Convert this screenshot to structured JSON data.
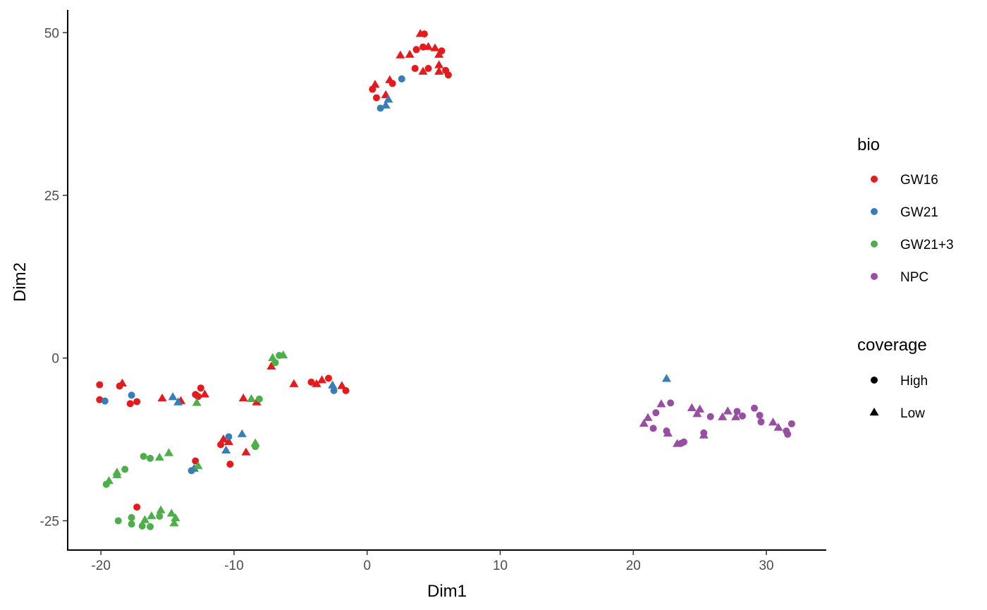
{
  "chart_data": {
    "type": "scatter",
    "xlabel": "Dim1",
    "ylabel": "Dim2",
    "xlim": [
      -22.5,
      34.5
    ],
    "ylim": [
      -29.5,
      53.5
    ],
    "x_ticks": [
      -20,
      -10,
      0,
      10,
      20,
      30
    ],
    "y_ticks": [
      -25,
      0,
      25,
      50
    ],
    "x_tick_labels": [
      "-20",
      "-10",
      "0",
      "10",
      "20",
      "30"
    ],
    "y_tick_labels": [
      "-25",
      "0",
      "25",
      "50"
    ],
    "grid": false,
    "legend_position": "right",
    "legends": {
      "color": {
        "title": "bio",
        "entries": [
          {
            "label": "GW16",
            "color": "#E41A1C"
          },
          {
            "label": "GW21",
            "color": "#377EB8"
          },
          {
            "label": "GW21+3",
            "color": "#4DAF4A"
          },
          {
            "label": "NPC",
            "color": "#984EA3"
          }
        ]
      },
      "shape": {
        "title": "coverage",
        "entries": [
          {
            "label": "High",
            "shape": "circle"
          },
          {
            "label": "Low",
            "shape": "triangle"
          }
        ]
      }
    },
    "point_fields": [
      "x",
      "y",
      "bio",
      "coverage"
    ],
    "points": [
      [
        0.4,
        41.3,
        "GW16",
        "High"
      ],
      [
        0.7,
        40.0,
        "GW16",
        "High"
      ],
      [
        0.6,
        42.0,
        "GW16",
        "Low"
      ],
      [
        1.4,
        40.4,
        "GW16",
        "Low"
      ],
      [
        1.7,
        42.7,
        "GW16",
        "Low"
      ],
      [
        1.9,
        42.2,
        "GW16",
        "High"
      ],
      [
        2.5,
        46.5,
        "GW16",
        "Low"
      ],
      [
        3.2,
        46.6,
        "GW16",
        "Low"
      ],
      [
        3.6,
        44.5,
        "GW16",
        "High"
      ],
      [
        3.7,
        47.4,
        "GW16",
        "High"
      ],
      [
        4.0,
        49.8,
        "GW16",
        "Low"
      ],
      [
        4.3,
        49.8,
        "GW16",
        "High"
      ],
      [
        4.2,
        47.8,
        "GW16",
        "High"
      ],
      [
        4.2,
        44.0,
        "GW16",
        "Low"
      ],
      [
        4.6,
        47.8,
        "GW16",
        "Low"
      ],
      [
        4.6,
        44.5,
        "GW16",
        "High"
      ],
      [
        5.1,
        47.6,
        "GW16",
        "Low"
      ],
      [
        5.4,
        45.0,
        "GW16",
        "Low"
      ],
      [
        5.4,
        46.6,
        "GW16",
        "Low"
      ],
      [
        5.6,
        47.2,
        "GW16",
        "High"
      ],
      [
        5.4,
        44.0,
        "GW16",
        "Low"
      ],
      [
        5.9,
        44.2,
        "GW16",
        "High"
      ],
      [
        6.1,
        43.5,
        "GW16",
        "High"
      ],
      [
        1.0,
        38.4,
        "GW21",
        "High"
      ],
      [
        1.4,
        38.8,
        "GW21",
        "Low"
      ],
      [
        1.6,
        39.7,
        "GW21",
        "Low"
      ],
      [
        2.6,
        42.9,
        "GW21",
        "High"
      ],
      [
        -20.1,
        -4.1,
        "GW16",
        "High"
      ],
      [
        -20.1,
        -6.4,
        "GW16",
        "High"
      ],
      [
        -18.6,
        -4.3,
        "GW16",
        "High"
      ],
      [
        -18.4,
        -3.9,
        "GW16",
        "Low"
      ],
      [
        -17.8,
        -7.0,
        "GW16",
        "High"
      ],
      [
        -17.3,
        -6.7,
        "GW16",
        "High"
      ],
      [
        -15.4,
        -6.2,
        "GW16",
        "Low"
      ],
      [
        -14.0,
        -6.6,
        "GW16",
        "Low"
      ],
      [
        -12.9,
        -5.6,
        "GW16",
        "High"
      ],
      [
        -12.7,
        -5.9,
        "GW16",
        "High"
      ],
      [
        -12.5,
        -4.6,
        "GW16",
        "High"
      ],
      [
        -12.2,
        -5.6,
        "GW16",
        "Low"
      ],
      [
        -9.3,
        -6.2,
        "GW16",
        "Low"
      ],
      [
        -8.3,
        -6.8,
        "GW16",
        "Low"
      ],
      [
        -7.2,
        -1.3,
        "GW16",
        "Low"
      ],
      [
        -5.5,
        -4.0,
        "GW16",
        "Low"
      ],
      [
        -4.2,
        -3.7,
        "GW16",
        "High"
      ],
      [
        -3.8,
        -4.0,
        "GW16",
        "Low"
      ],
      [
        -3.4,
        -3.4,
        "GW16",
        "Low"
      ],
      [
        -2.9,
        -3.1,
        "GW16",
        "High"
      ],
      [
        -1.9,
        -4.3,
        "GW16",
        "Low"
      ],
      [
        -1.6,
        -5.0,
        "GW16",
        "High"
      ],
      [
        -11.0,
        -13.3,
        "GW16",
        "High"
      ],
      [
        -10.8,
        -12.5,
        "GW16",
        "Low"
      ],
      [
        -10.4,
        -12.9,
        "GW16",
        "Low"
      ],
      [
        -10.3,
        -16.3,
        "GW16",
        "High"
      ],
      [
        -9.1,
        -14.5,
        "GW16",
        "Low"
      ],
      [
        -12.9,
        -15.8,
        "GW16",
        "High"
      ],
      [
        -17.3,
        -22.9,
        "GW16",
        "High"
      ],
      [
        -19.7,
        -6.6,
        "GW21",
        "High"
      ],
      [
        -17.7,
        -5.7,
        "GW21",
        "High"
      ],
      [
        -14.6,
        -6.0,
        "GW21",
        "Low"
      ],
      [
        -14.2,
        -6.8,
        "GW21",
        "Low"
      ],
      [
        -13.2,
        -17.3,
        "GW21",
        "High"
      ],
      [
        -13.0,
        -17.0,
        "GW21",
        "Low"
      ],
      [
        -10.6,
        -14.2,
        "GW21",
        "Low"
      ],
      [
        -10.4,
        -12.1,
        "GW21",
        "High"
      ],
      [
        -9.4,
        -11.7,
        "GW21",
        "Low"
      ],
      [
        -2.6,
        -4.2,
        "GW21",
        "Low"
      ],
      [
        -2.5,
        -5.0,
        "GW21",
        "High"
      ],
      [
        -7.1,
        0.0,
        "GW21+3",
        "Low"
      ],
      [
        -6.9,
        -0.7,
        "GW21+3",
        "High"
      ],
      [
        -6.6,
        0.4,
        "GW21+3",
        "High"
      ],
      [
        -6.3,
        0.4,
        "GW21+3",
        "Low"
      ],
      [
        -8.7,
        -6.3,
        "GW21+3",
        "Low"
      ],
      [
        -8.1,
        -6.3,
        "GW21+3",
        "High"
      ],
      [
        -12.8,
        -6.9,
        "GW21+3",
        "Low"
      ],
      [
        -12.7,
        -16.6,
        "GW21+3",
        "Low"
      ],
      [
        -8.4,
        -13.1,
        "GW21+3",
        "Low"
      ],
      [
        -8.4,
        -13.6,
        "GW21+3",
        "High"
      ],
      [
        -19.6,
        -19.4,
        "GW21+3",
        "High"
      ],
      [
        -19.4,
        -18.9,
        "GW21+3",
        "Low"
      ],
      [
        -18.8,
        -18.0,
        "GW21+3",
        "Low"
      ],
      [
        -18.8,
        -17.6,
        "GW21+3",
        "Low"
      ],
      [
        -18.2,
        -17.1,
        "GW21+3",
        "High"
      ],
      [
        -16.8,
        -15.1,
        "GW21+3",
        "High"
      ],
      [
        -16.3,
        -15.4,
        "GW21+3",
        "High"
      ],
      [
        -15.6,
        -15.3,
        "GW21+3",
        "Low"
      ],
      [
        -14.9,
        -14.6,
        "GW21+3",
        "Low"
      ],
      [
        -18.7,
        -25.0,
        "GW21+3",
        "High"
      ],
      [
        -17.7,
        -24.5,
        "GW21+3",
        "High"
      ],
      [
        -17.7,
        -25.5,
        "GW21+3",
        "High"
      ],
      [
        -16.9,
        -25.8,
        "GW21+3",
        "High"
      ],
      [
        -16.7,
        -24.9,
        "GW21+3",
        "Low"
      ],
      [
        -16.3,
        -25.9,
        "GW21+3",
        "High"
      ],
      [
        -16.2,
        -24.3,
        "GW21+3",
        "Low"
      ],
      [
        -15.6,
        -24.3,
        "GW21+3",
        "High"
      ],
      [
        -15.5,
        -23.4,
        "GW21+3",
        "Low"
      ],
      [
        -14.7,
        -23.9,
        "GW21+3",
        "Low"
      ],
      [
        -14.5,
        -25.4,
        "GW21+3",
        "Low"
      ],
      [
        -14.4,
        -24.6,
        "GW21+3",
        "Low"
      ],
      [
        22.5,
        -3.2,
        "GW21",
        "Low"
      ],
      [
        20.8,
        -10.1,
        "NPC",
        "Low"
      ],
      [
        21.1,
        -9.2,
        "NPC",
        "Low"
      ],
      [
        21.5,
        -10.8,
        "NPC",
        "High"
      ],
      [
        21.7,
        -8.4,
        "NPC",
        "High"
      ],
      [
        22.1,
        -7.1,
        "NPC",
        "Low"
      ],
      [
        22.5,
        -11.2,
        "NPC",
        "High"
      ],
      [
        22.6,
        -11.6,
        "NPC",
        "Low"
      ],
      [
        22.8,
        -6.9,
        "NPC",
        "High"
      ],
      [
        23.3,
        -13.2,
        "NPC",
        "Low"
      ],
      [
        23.6,
        -13.1,
        "NPC",
        "High"
      ],
      [
        23.8,
        -12.9,
        "NPC",
        "High"
      ],
      [
        25.3,
        -11.9,
        "NPC",
        "Low"
      ],
      [
        25.3,
        -11.5,
        "NPC",
        "High"
      ],
      [
        24.4,
        -7.7,
        "NPC",
        "Low"
      ],
      [
        24.8,
        -8.6,
        "NPC",
        "Low"
      ],
      [
        25.0,
        -7.9,
        "NPC",
        "Low"
      ],
      [
        25.8,
        -9.0,
        "NPC",
        "High"
      ],
      [
        26.7,
        -9.1,
        "NPC",
        "Low"
      ],
      [
        27.1,
        -8.2,
        "NPC",
        "Low"
      ],
      [
        27.7,
        -9.1,
        "NPC",
        "Low"
      ],
      [
        27.8,
        -8.2,
        "NPC",
        "High"
      ],
      [
        28.2,
        -8.9,
        "NPC",
        "High"
      ],
      [
        29.1,
        -7.7,
        "NPC",
        "High"
      ],
      [
        29.5,
        -8.8,
        "NPC",
        "High"
      ],
      [
        29.6,
        -9.8,
        "NPC",
        "High"
      ],
      [
        30.5,
        -9.9,
        "NPC",
        "Low"
      ],
      [
        30.9,
        -10.7,
        "NPC",
        "Low"
      ],
      [
        31.5,
        -11.2,
        "NPC",
        "High"
      ],
      [
        31.6,
        -11.7,
        "NPC",
        "High"
      ],
      [
        31.9,
        -10.1,
        "NPC",
        "High"
      ]
    ]
  }
}
